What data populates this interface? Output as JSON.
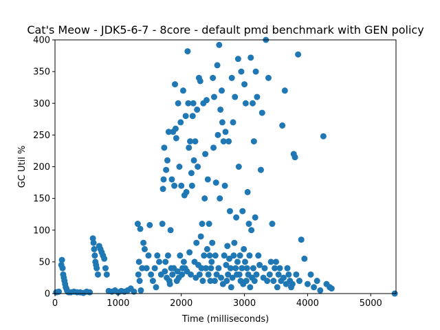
{
  "chart_data": {
    "type": "scatter",
    "title": "Cat's Meow - JDK5-6-7 - 8core -  default pmd benchmark with GEN policy",
    "xlabel": "Time (milliseconds)",
    "ylabel": "GC Util %",
    "xlim": [
      0,
      5400
    ],
    "ylim": [
      0,
      400
    ],
    "xticks": [
      0,
      1000,
      2000,
      3000,
      4000,
      5000
    ],
    "yticks": [
      0,
      50,
      100,
      150,
      200,
      250,
      300,
      350,
      400
    ],
    "grid": false,
    "legend": "none",
    "marker_color": "#1f77b4",
    "series": [
      {
        "x": [
          20,
          60,
          100,
          110,
          120,
          130,
          140,
          150,
          160,
          170,
          180,
          190,
          200,
          220,
          250,
          300,
          350,
          400,
          450,
          500,
          550,
          600,
          610,
          620,
          630,
          640,
          650,
          660,
          680,
          700,
          720,
          740,
          760,
          780,
          800,
          820,
          850,
          900,
          950,
          1000,
          1050,
          1100,
          1150,
          1200,
          1250,
          1310,
          1320,
          1330,
          1340,
          1350,
          1360,
          1380,
          1400,
          1420,
          1450,
          1480,
          1500,
          1520,
          1550,
          1580,
          1600,
          1620,
          1650,
          1680,
          1700,
          1710,
          1720,
          1730,
          1740,
          1750,
          1760,
          1770,
          1780,
          1790,
          1800,
          1810,
          1820,
          1830,
          1840,
          1850,
          1860,
          1870,
          1880,
          1890,
          1900,
          1910,
          1920,
          1930,
          1940,
          1950,
          1960,
          1970,
          1980,
          1990,
          2000,
          2010,
          2020,
          2030,
          2040,
          2050,
          2060,
          2070,
          2080,
          2090,
          2100,
          2110,
          2120,
          2130,
          2140,
          2150,
          2160,
          2170,
          2180,
          2190,
          2200,
          2210,
          2220,
          2230,
          2240,
          2250,
          2260,
          2270,
          2280,
          2290,
          2300,
          2310,
          2320,
          2330,
          2340,
          2350,
          2360,
          2370,
          2380,
          2390,
          2400,
          2410,
          2420,
          2430,
          2440,
          2450,
          2460,
          2470,
          2480,
          2490,
          2500,
          2510,
          2520,
          2530,
          2540,
          2550,
          2560,
          2570,
          2580,
          2590,
          2600,
          2610,
          2620,
          2630,
          2640,
          2650,
          2660,
          2670,
          2680,
          2690,
          2700,
          2710,
          2720,
          2730,
          2740,
          2750,
          2760,
          2770,
          2780,
          2790,
          2800,
          2810,
          2820,
          2830,
          2840,
          2850,
          2860,
          2870,
          2880,
          2890,
          2900,
          2910,
          2920,
          2930,
          2940,
          2950,
          2960,
          2970,
          2980,
          2990,
          3000,
          3010,
          3020,
          3030,
          3040,
          3050,
          3060,
          3070,
          3080,
          3090,
          3100,
          3110,
          3120,
          3130,
          3140,
          3150,
          3160,
          3170,
          3180,
          3190,
          3200,
          3220,
          3240,
          3260,
          3280,
          3300,
          3320,
          3340,
          3360,
          3380,
          3400,
          3420,
          3440,
          3460,
          3480,
          3500,
          3520,
          3540,
          3560,
          3580,
          3600,
          3620,
          3640,
          3660,
          3680,
          3700,
          3720,
          3740,
          3760,
          3780,
          3800,
          3820,
          3850,
          3870,
          3900,
          3950,
          4000,
          4050,
          4100,
          4150,
          4200,
          4250,
          4300,
          4350,
          4380,
          5380
        ],
        "y": [
          2,
          3,
          45,
          53,
          40,
          30,
          25,
          20,
          15,
          10,
          8,
          5,
          3,
          2,
          2,
          3,
          2,
          2,
          1,
          3,
          2,
          87,
          80,
          70,
          60,
          50,
          45,
          40,
          30,
          75,
          70,
          65,
          60,
          55,
          40,
          30,
          4,
          3,
          5,
          2,
          4,
          3,
          5,
          8,
          3,
          110,
          30,
          50,
          20,
          102,
          5,
          40,
          80,
          70,
          40,
          60,
          108,
          30,
          20,
          40,
          10,
          60,
          50,
          30,
          110,
          165,
          180,
          230,
          35,
          50,
          195,
          25,
          210,
          60,
          255,
          20,
          15,
          100,
          40,
          180,
          30,
          255,
          40,
          170,
          330,
          260,
          245,
          20,
          35,
          300,
          25,
          200,
          60,
          270,
          170,
          30,
          40,
          320,
          50,
          155,
          40,
          280,
          160,
          35,
          382,
          300,
          230,
          65,
          240,
          30,
          190,
          170,
          280,
          300,
          210,
          50,
          240,
          25,
          80,
          290,
          200,
          45,
          340,
          30,
          335,
          90,
          40,
          110,
          20,
          300,
          60,
          150,
          220,
          40,
          305,
          70,
          180,
          30,
          110,
          60,
          20,
          40,
          50,
          80,
          340,
          230,
          310,
          20,
          60,
          175,
          30,
          360,
          250,
          40,
          392,
          150,
          290,
          25,
          320,
          270,
          15,
          240,
          60,
          170,
          255,
          45,
          20,
          75,
          30,
          240,
          55,
          130,
          40,
          10,
          340,
          25,
          270,
          60,
          80,
          310,
          40,
          120,
          30,
          50,
          370,
          200,
          30,
          60,
          20,
          350,
          40,
          130,
          15,
          70,
          330,
          50,
          300,
          20,
          40,
          160,
          30,
          110,
          60,
          10,
          372,
          100,
          25,
          300,
          40,
          240,
          20,
          120,
          350,
          30,
          310,
          60,
          45,
          195,
          285,
          25,
          40,
          400,
          20,
          340,
          30,
          50,
          110,
          20,
          40,
          50,
          10,
          30,
          40,
          20,
          265,
          25,
          320,
          15,
          40,
          30,
          20,
          10,
          15,
          220,
          215,
          30,
          377,
          20,
          85,
          55,
          15,
          30,
          10,
          20,
          5,
          248,
          15,
          10,
          8,
          0
        ]
      }
    ]
  }
}
